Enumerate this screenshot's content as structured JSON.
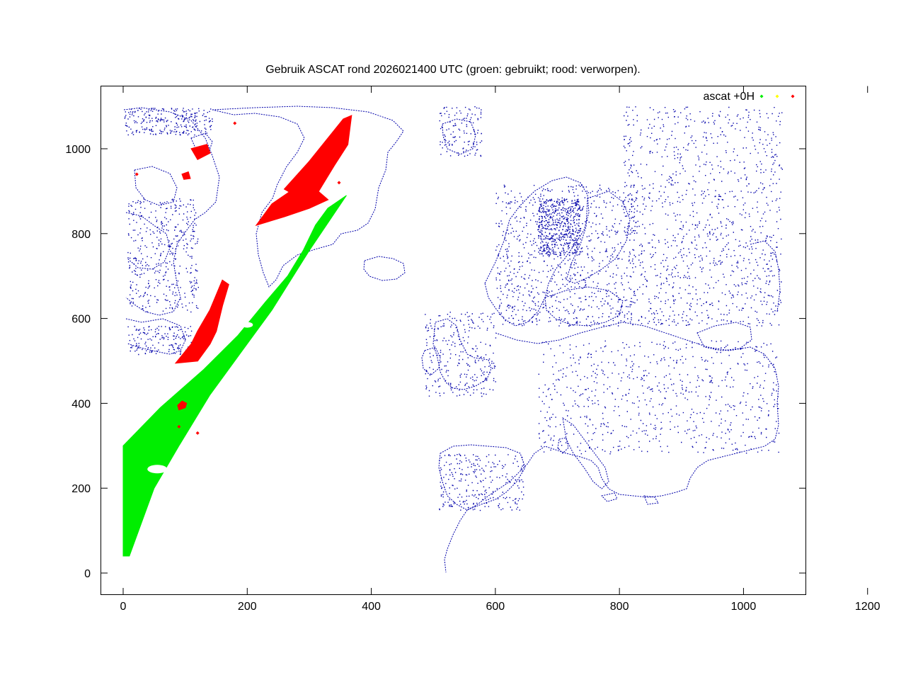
{
  "chart_data": {
    "type": "scatter",
    "title": "Gebruik ASCAT rond 2026021400 UTC (groen: gebruikt; rood: verworpen).",
    "xlabel": "",
    "ylabel": "",
    "xlim": [
      -50,
      1500
    ],
    "ylim": [
      -50,
      1100
    ],
    "xticks": [
      0,
      200,
      400,
      600,
      800,
      1000,
      1200,
      1400
    ],
    "yticks": [
      0,
      200,
      400,
      600,
      800,
      1000
    ],
    "grid": false,
    "legend_position": "top-right",
    "legend": {
      "label": "ascat +0H"
    },
    "colors": {
      "used": "#00ee00",
      "unknown": "#ffff00",
      "rejected": "#ff0000",
      "coast": "#0000aa"
    },
    "series": [
      {
        "role": "used",
        "color": "#00ee00",
        "swath_polygon": [
          [
            0,
            40
          ],
          [
            0,
            300
          ],
          [
            60,
            390
          ],
          [
            130,
            480
          ],
          [
            185,
            560
          ],
          [
            230,
            640
          ],
          [
            265,
            700
          ],
          [
            290,
            760
          ],
          [
            310,
            820
          ],
          [
            330,
            860
          ],
          [
            340,
            870
          ],
          [
            360,
            890
          ],
          [
            300,
            760
          ],
          [
            240,
            620
          ],
          [
            190,
            520
          ],
          [
            140,
            420
          ],
          [
            90,
            300
          ],
          [
            50,
            200
          ],
          [
            10,
            40
          ]
        ]
      },
      {
        "role": "rejected",
        "color": "#ff0000",
        "regions": [
          [
            [
              260,
              905
            ],
            [
              300,
              970
            ],
            [
              355,
              1070
            ],
            [
              368,
              1078
            ],
            [
              362,
              1010
            ],
            [
              340,
              960
            ],
            [
              315,
              900
            ],
            [
              290,
              880
            ]
          ],
          [
            [
              215,
              820
            ],
            [
              240,
              870
            ],
            [
              275,
              905
            ],
            [
              310,
              905
            ],
            [
              330,
              880
            ],
            [
              300,
              860
            ],
            [
              260,
              840
            ]
          ],
          [
            [
              85,
              495
            ],
            [
              120,
              500
            ],
            [
              140,
              540
            ],
            [
              150,
              570
            ],
            [
              160,
              630
            ],
            [
              170,
              680
            ],
            [
              160,
              690
            ],
            [
              140,
              620
            ],
            [
              120,
              570
            ],
            [
              110,
              540
            ]
          ],
          [
            [
              90,
              385
            ],
            [
              100,
              390
            ],
            [
              102,
              400
            ],
            [
              95,
              405
            ],
            [
              88,
              395
            ]
          ],
          [
            [
              110,
              1000
            ],
            [
              135,
              1010
            ],
            [
              140,
              990
            ],
            [
              120,
              975
            ]
          ],
          [
            [
              95,
              940
            ],
            [
              105,
              945
            ],
            [
              108,
              930
            ],
            [
              98,
              928
            ]
          ]
        ],
        "points": [
          [
            22,
            940
          ],
          [
            180,
            1060
          ],
          [
            348,
            920
          ],
          [
            120,
            330
          ],
          [
            90,
            345
          ]
        ]
      }
    ]
  }
}
